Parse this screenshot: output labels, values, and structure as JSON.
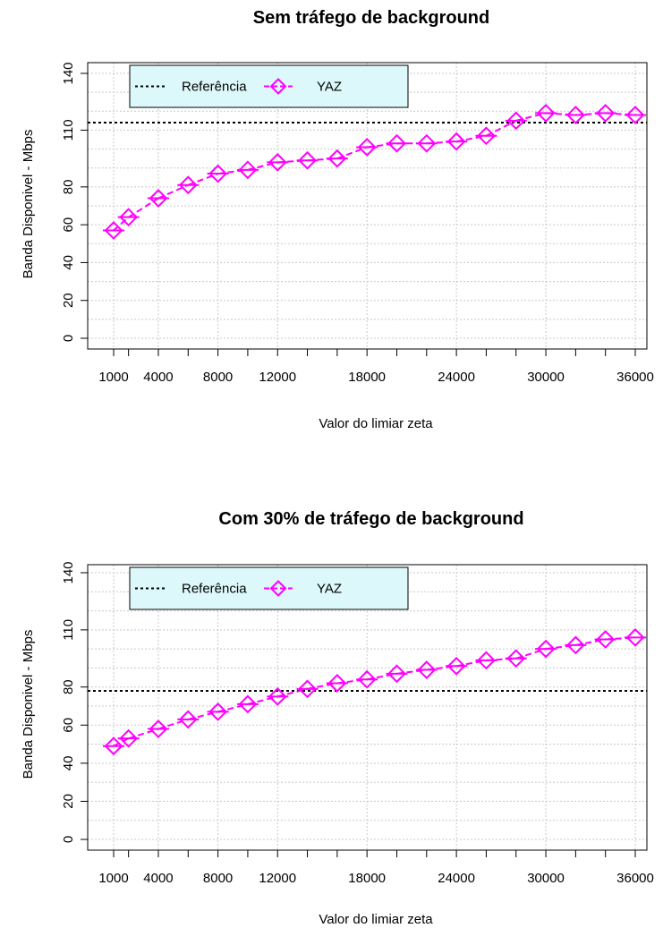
{
  "chart_data": [
    {
      "type": "line",
      "title": "Sem tráfego de background",
      "xlabel": "Valor do limiar zeta",
      "ylabel": "Banda Disponivel - Mbps",
      "xlim": [
        0,
        36000
      ],
      "ylim": [
        0,
        140
      ],
      "x_ticks": [
        1000,
        4000,
        8000,
        12000,
        18000,
        24000,
        30000,
        36000
      ],
      "x_ticks_unlabeled": [
        2000,
        6000,
        10000,
        14000,
        16000,
        20000,
        22000,
        26000,
        28000,
        32000,
        34000
      ],
      "y_ticks": [
        0,
        20,
        40,
        60,
        80,
        110,
        140
      ],
      "y_grid": [
        0,
        10,
        20,
        30,
        40,
        50,
        60,
        70,
        80,
        90,
        100,
        110,
        120,
        130,
        140
      ],
      "x_grid": [
        0,
        4000,
        8000,
        12000,
        18000,
        24000,
        30000,
        36000
      ],
      "grid": true,
      "legend_position": "top-left",
      "legend_bg": "#ddf8fa",
      "series": [
        {
          "name": "Referência",
          "style": "dotted",
          "color": "#000000",
          "value": 114
        },
        {
          "name": "YAZ",
          "style": "dashed-diamond",
          "color": "#ff00ff",
          "x": [
            1000,
            2000,
            4000,
            6000,
            8000,
            10000,
            12000,
            14000,
            16000,
            18000,
            20000,
            22000,
            24000,
            26000,
            28000,
            30000,
            32000,
            34000,
            36000
          ],
          "y": [
            57,
            64,
            74,
            81,
            87,
            89,
            93,
            94,
            95,
            101,
            103,
            103,
            104,
            107,
            115,
            119,
            118,
            119,
            118
          ]
        }
      ]
    },
    {
      "type": "line",
      "title": "Com 30% de tráfego de background",
      "xlabel": "Valor do limiar zeta",
      "ylabel": "Banda Disponivel - Mbps",
      "xlim": [
        0,
        36000
      ],
      "ylim": [
        0,
        140
      ],
      "x_ticks": [
        1000,
        4000,
        8000,
        12000,
        18000,
        24000,
        30000,
        36000
      ],
      "x_ticks_unlabeled": [
        2000,
        6000,
        10000,
        14000,
        16000,
        20000,
        22000,
        26000,
        28000,
        32000,
        34000
      ],
      "y_ticks": [
        0,
        20,
        40,
        60,
        80,
        110,
        140
      ],
      "y_grid": [
        0,
        10,
        20,
        30,
        40,
        50,
        60,
        70,
        80,
        90,
        100,
        110,
        120,
        130,
        140
      ],
      "x_grid": [
        0,
        4000,
        8000,
        12000,
        18000,
        24000,
        30000,
        36000
      ],
      "grid": true,
      "legend_position": "top-left",
      "legend_bg": "#ddf8fa",
      "series": [
        {
          "name": "Referência",
          "style": "dotted",
          "color": "#000000",
          "value": 78
        },
        {
          "name": "YAZ",
          "style": "dashed-diamond",
          "color": "#ff00ff",
          "x": [
            1000,
            2000,
            4000,
            6000,
            8000,
            10000,
            12000,
            14000,
            16000,
            18000,
            20000,
            22000,
            24000,
            26000,
            28000,
            30000,
            32000,
            34000,
            36000
          ],
          "y": [
            49,
            53,
            58,
            63,
            67,
            71,
            75,
            79,
            82,
            84,
            87,
            89,
            91,
            94,
            95,
            100,
            102,
            105,
            106
          ]
        }
      ]
    }
  ]
}
